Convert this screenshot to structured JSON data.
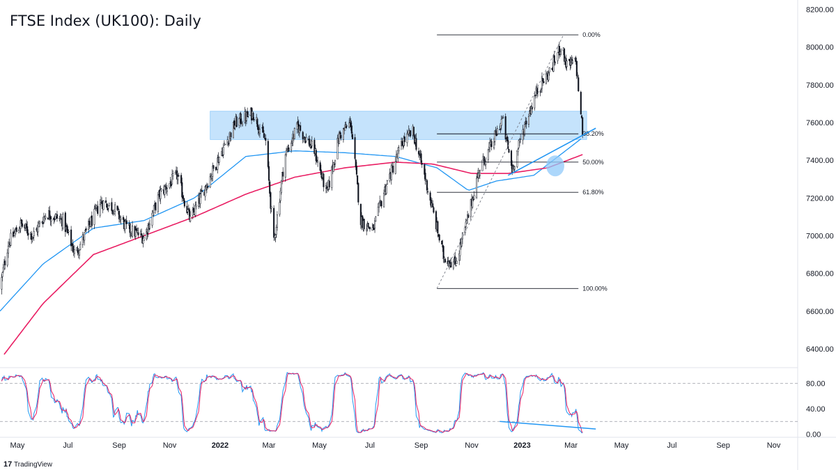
{
  "title": "FTSE Index (UK100): Daily",
  "brand": {
    "name": "TradingView",
    "logo_text": "17"
  },
  "colors": {
    "up": "#ffffff",
    "down": "#131722",
    "wick": "#131722",
    "ma_fast": "#2196f3",
    "ma_slow": "#e91e63",
    "zone": "#bbdefb",
    "trendline": "#2196f3",
    "fib": "#131722",
    "stoch_k": "#2196f3",
    "stoch_d": "#e91e63"
  },
  "chart_data": [
    {
      "type": "candlestick",
      "title": "FTSE Index (UK100): Daily",
      "x_range": [
        "2021-04-10",
        "2023-11-30"
      ],
      "y_range": [
        6300,
        8250
      ],
      "y_ticks": [
        "6400.00",
        "6600.00",
        "6800.00",
        "7000.00",
        "7200.00",
        "7400.00",
        "7600.00",
        "7800.00",
        "8000.00",
        "8200.00"
      ],
      "x_ticks": [
        {
          "label": "May",
          "date": "2021-05-01"
        },
        {
          "label": "Jul",
          "date": "2021-07-01"
        },
        {
          "label": "Sep",
          "date": "2021-09-01"
        },
        {
          "label": "Nov",
          "date": "2021-11-01"
        },
        {
          "label": "2022",
          "date": "2022-01-01"
        },
        {
          "label": "Mar",
          "date": "2022-03-01"
        },
        {
          "label": "May",
          "date": "2022-05-01"
        },
        {
          "label": "Jul",
          "date": "2022-07-01"
        },
        {
          "label": "Sep",
          "date": "2022-09-01"
        },
        {
          "label": "Nov",
          "date": "2022-11-01"
        },
        {
          "label": "2023",
          "date": "2023-01-01"
        },
        {
          "label": "Mar",
          "date": "2023-03-01"
        },
        {
          "label": "May",
          "date": "2023-05-01"
        },
        {
          "label": "Jul",
          "date": "2023-07-01"
        },
        {
          "label": "Sep",
          "date": "2023-09-01"
        },
        {
          "label": "Nov",
          "date": "2023-11-01"
        }
      ],
      "price_path": [
        [
          "2021-04-10",
          6720
        ],
        [
          "2021-04-20",
          6960
        ],
        [
          "2021-05-05",
          7060
        ],
        [
          "2021-05-20",
          7000
        ],
        [
          "2021-06-05",
          7120
        ],
        [
          "2021-06-25",
          7080
        ],
        [
          "2021-07-10",
          6900
        ],
        [
          "2021-07-20",
          6990
        ],
        [
          "2021-08-10",
          7180
        ],
        [
          "2021-08-25",
          7150
        ],
        [
          "2021-09-10",
          7040
        ],
        [
          "2021-10-01",
          6990
        ],
        [
          "2021-10-20",
          7220
        ],
        [
          "2021-11-10",
          7320
        ],
        [
          "2021-11-26",
          7080
        ],
        [
          "2021-12-10",
          7220
        ],
        [
          "2021-12-31",
          7420
        ],
        [
          "2022-01-20",
          7600
        ],
        [
          "2022-02-10",
          7650
        ],
        [
          "2022-02-25",
          7500
        ],
        [
          "2022-03-07",
          6960
        ],
        [
          "2022-03-20",
          7420
        ],
        [
          "2022-04-05",
          7580
        ],
        [
          "2022-04-25",
          7450
        ],
        [
          "2022-05-10",
          7220
        ],
        [
          "2022-05-25",
          7530
        ],
        [
          "2022-06-08",
          7600
        ],
        [
          "2022-06-20",
          7080
        ],
        [
          "2022-07-05",
          7030
        ],
        [
          "2022-07-20",
          7260
        ],
        [
          "2022-08-10",
          7500
        ],
        [
          "2022-08-22",
          7550
        ],
        [
          "2022-09-05",
          7320
        ],
        [
          "2022-09-28",
          6890
        ],
        [
          "2022-10-12",
          6850
        ],
        [
          "2022-10-25",
          7050
        ],
        [
          "2022-11-10",
          7350
        ],
        [
          "2022-11-25",
          7480
        ],
        [
          "2022-12-08",
          7620
        ],
        [
          "2022-12-20",
          7350
        ],
        [
          "2023-01-05",
          7600
        ],
        [
          "2023-01-20",
          7780
        ],
        [
          "2023-02-05",
          7880
        ],
        [
          "2023-02-17",
          8010
        ],
        [
          "2023-02-24",
          7900
        ],
        [
          "2023-03-07",
          7920
        ],
        [
          "2023-03-15",
          7550
        ]
      ],
      "series": [
        {
          "name": "",
          "type": "moving-average",
          "color": "#2196f3",
          "points": [
            [
              "2021-04-10",
              6600
            ],
            [
              "2021-06-01",
              6850
            ],
            [
              "2021-08-01",
              7040
            ],
            [
              "2021-10-01",
              7080
            ],
            [
              "2021-12-01",
              7200
            ],
            [
              "2022-02-01",
              7420
            ],
            [
              "2022-04-01",
              7450
            ],
            [
              "2022-06-01",
              7440
            ],
            [
              "2022-08-01",
              7420
            ],
            [
              "2022-09-20",
              7360
            ],
            [
              "2022-10-28",
              7240
            ],
            [
              "2022-12-01",
              7290
            ],
            [
              "2023-01-15",
              7320
            ],
            [
              "2023-03-15",
              7520
            ]
          ]
        },
        {
          "name": "",
          "type": "moving-average",
          "color": "#e91e63",
          "points": [
            [
              "2021-04-15",
              6370
            ],
            [
              "2021-06-01",
              6640
            ],
            [
              "2021-08-01",
              6900
            ],
            [
              "2021-10-01",
              7000
            ],
            [
              "2021-12-01",
              7100
            ],
            [
              "2022-02-01",
              7220
            ],
            [
              "2022-04-01",
              7310
            ],
            [
              "2022-06-01",
              7360
            ],
            [
              "2022-08-01",
              7390
            ],
            [
              "2022-09-15",
              7380
            ],
            [
              "2022-11-01",
              7330
            ],
            [
              "2022-12-15",
              7330
            ],
            [
              "2023-02-01",
              7360
            ],
            [
              "2023-03-15",
              7430
            ]
          ]
        }
      ],
      "zones": [
        {
          "from": "2021-12-20",
          "to": "2023-03-20",
          "price_low": 7510,
          "price_high": 7660
        }
      ],
      "fibonacci": {
        "from": "2022-09-20",
        "to": "2023-03-10",
        "levels": [
          {
            "ratio": 0.0,
            "price": 8065,
            "label": "0.00%"
          },
          {
            "ratio": 0.382,
            "price": 7540,
            "label": "38.20%"
          },
          {
            "ratio": 0.5,
            "price": 7390,
            "label": "50.00%"
          },
          {
            "ratio": 0.618,
            "price": 7230,
            "label": "61.80%"
          },
          {
            "ratio": 1.0,
            "price": 6720,
            "label": "100.00%"
          }
        ]
      },
      "annotations": [
        {
          "type": "dashed-line",
          "from": [
            "2022-09-20",
            6720
          ],
          "to": [
            "2023-02-20",
            8065
          ]
        },
        {
          "type": "trendline",
          "from": [
            "2022-12-15",
            7320
          ],
          "to": [
            "2023-03-31",
            7570
          ]
        },
        {
          "type": "highlight-circle",
          "date": "2023-02-10",
          "price": 7370
        }
      ]
    },
    {
      "type": "line",
      "title": "",
      "y_range": [
        -5,
        105
      ],
      "y_ticks": [
        "0.00",
        "40.00",
        "80.00"
      ],
      "levels": [
        20,
        80
      ],
      "series": [
        {
          "name": "",
          "color": "#2196f3"
        },
        {
          "name": "",
          "color": "#e91e63"
        }
      ],
      "annotations": [
        {
          "type": "trendline",
          "from": [
            "2022-12-05",
            20
          ],
          "to": [
            "2023-03-31",
            8
          ]
        }
      ]
    }
  ]
}
